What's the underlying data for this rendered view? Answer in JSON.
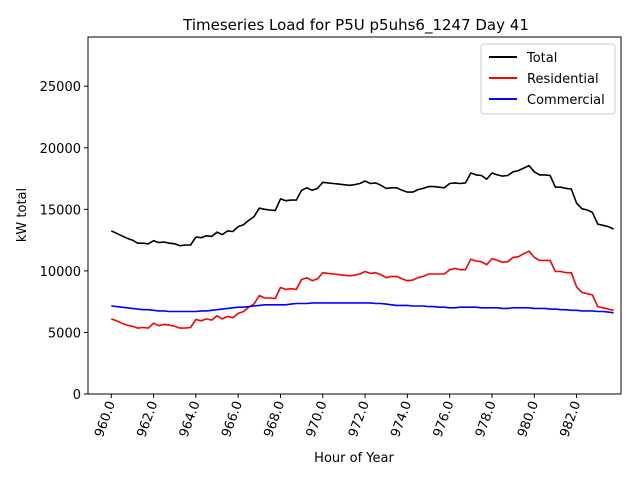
{
  "chart_data": {
    "type": "line",
    "title": "Timeseries Load for P5U p5uhs6_1247  Day 41",
    "xlabel": "Hour of Year",
    "ylabel": "kW total",
    "xlim": [
      958.9,
      984.1
    ],
    "ylim": [
      0,
      29000
    ],
    "xticks": [
      960,
      962,
      964,
      966,
      968,
      970,
      972,
      974,
      976,
      978,
      980,
      982
    ],
    "xtick_labels": [
      "960.0",
      "962.0",
      "964.0",
      "966.0",
      "968.0",
      "970.0",
      "972.0",
      "974.0",
      "976.0",
      "978.0",
      "980.0",
      "982.0"
    ],
    "yticks": [
      0,
      5000,
      10000,
      15000,
      20000,
      25000
    ],
    "ytick_labels": [
      "0",
      "5000",
      "10000",
      "15000",
      "20000",
      "25000"
    ],
    "legend_position": "top-right",
    "x_start": 960.0,
    "x_step": 0.25,
    "series": [
      {
        "name": "Total",
        "color": "#000000",
        "values": [
          13250,
          13050,
          12850,
          12650,
          12500,
          12250,
          12250,
          12200,
          12450,
          12300,
          12350,
          12250,
          12200,
          12050,
          12100,
          12100,
          12750,
          12700,
          12850,
          12800,
          13150,
          12950,
          13250,
          13200,
          13600,
          13750,
          14100,
          14400,
          15100,
          15000,
          14950,
          14900,
          15850,
          15700,
          15750,
          15750,
          16550,
          16750,
          16550,
          16700,
          17200,
          17150,
          17100,
          17050,
          17000,
          16950,
          17000,
          17100,
          17300,
          17100,
          17150,
          16950,
          16700,
          16750,
          16750,
          16550,
          16400,
          16400,
          16600,
          16700,
          16850,
          16850,
          16800,
          16750,
          17100,
          17150,
          17100,
          17150,
          17950,
          17800,
          17750,
          17450,
          17950,
          17800,
          17700,
          17750,
          18050,
          18150,
          18350,
          18550,
          18050,
          17800,
          17800,
          17750,
          16800,
          16800,
          16700,
          16650,
          15500,
          15050,
          14950,
          14750,
          13800,
          13700,
          13600,
          13400
        ]
      },
      {
        "name": "Residential",
        "color": "#ff0000",
        "values": [
          6100,
          5950,
          5750,
          5600,
          5500,
          5350,
          5400,
          5350,
          5750,
          5550,
          5650,
          5600,
          5500,
          5350,
          5350,
          5400,
          6050,
          5950,
          6100,
          6000,
          6350,
          6100,
          6300,
          6200,
          6550,
          6700,
          7050,
          7300,
          8000,
          7800,
          7800,
          7750,
          8650,
          8500,
          8550,
          8500,
          9300,
          9450,
          9200,
          9350,
          9850,
          9800,
          9750,
          9700,
          9650,
          9600,
          9650,
          9750,
          9950,
          9800,
          9850,
          9700,
          9450,
          9550,
          9550,
          9350,
          9200,
          9250,
          9450,
          9550,
          9750,
          9750,
          9750,
          9750,
          10100,
          10200,
          10100,
          10100,
          10950,
          10800,
          10750,
          10500,
          11000,
          10850,
          10700,
          10750,
          11100,
          11150,
          11400,
          11600,
          11100,
          10850,
          10850,
          10850,
          9950,
          9950,
          9850,
          9850,
          8700,
          8250,
          8150,
          8050,
          7100,
          7000,
          6900,
          6800
        ]
      },
      {
        "name": "Commercial",
        "color": "#0000ff",
        "values": [
          7150,
          7100,
          7050,
          7000,
          6950,
          6900,
          6850,
          6850,
          6800,
          6750,
          6750,
          6700,
          6700,
          6700,
          6700,
          6700,
          6700,
          6750,
          6750,
          6800,
          6850,
          6900,
          6950,
          7000,
          7050,
          7050,
          7100,
          7150,
          7200,
          7250,
          7250,
          7250,
          7250,
          7250,
          7300,
          7350,
          7350,
          7350,
          7400,
          7400,
          7400,
          7400,
          7400,
          7400,
          7400,
          7400,
          7400,
          7400,
          7400,
          7400,
          7350,
          7350,
          7300,
          7250,
          7200,
          7200,
          7200,
          7150,
          7150,
          7150,
          7100,
          7100,
          7050,
          7050,
          7000,
          7000,
          7050,
          7050,
          7050,
          7050,
          7000,
          7000,
          7000,
          7000,
          6950,
          6950,
          7000,
          7000,
          7000,
          7000,
          6950,
          6950,
          6950,
          6900,
          6900,
          6850,
          6850,
          6800,
          6800,
          6750,
          6750,
          6750,
          6700,
          6700,
          6650,
          6600
        ]
      }
    ]
  }
}
